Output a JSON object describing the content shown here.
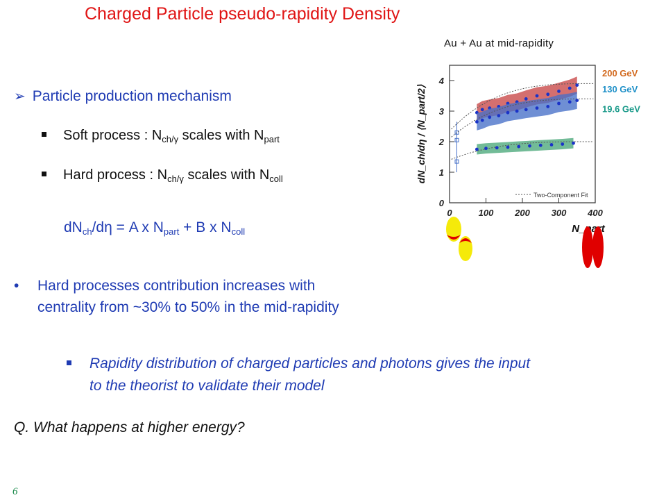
{
  "title": "Charged Particle pseudo-rapidity Density",
  "section_heading": "Particle production mechanism",
  "items": {
    "soft_pre": "Soft process : N",
    "soft_sub": "ch/γ",
    "soft_mid": " scales with N",
    "soft_sub2": "part",
    "hard_pre": "Hard process : N",
    "hard_sub": "ch/γ",
    "hard_mid": " scales with N",
    "hard_sub2": "coll"
  },
  "formula": {
    "p1": "dN",
    "s1": "ch",
    "p2": "/dη = A x N",
    "s2": "part",
    "p3": " + B x N",
    "s3": "coll"
  },
  "bullet_line1": "Hard processes contribution increases with",
  "bullet_line2": "centrality from ~30% to 50% in the mid-rapidity",
  "italic_line1": "Rapidity distribution of charged particles and photons gives the input",
  "italic_line2": "to the theorist to validate their model",
  "question": "Q. What happens at higher energy?",
  "page_number": "6",
  "colors": {
    "title": "#e01515",
    "text_blue": "#1f3bb3",
    "label_200": "#d2691e",
    "label_130": "#1e90c8",
    "label_196": "#1a9a8a"
  },
  "chart_data": {
    "type": "scatter",
    "title": "Au + Au at mid-rapidity",
    "xlabel": "N_part",
    "ylabel": "dN_ch/dη / ⟨N_part/2⟩",
    "xlim": [
      0,
      400
    ],
    "ylim": [
      0,
      4.5
    ],
    "xticks": [
      "0",
      "100",
      "200",
      "300",
      "400"
    ],
    "yticks": [
      "0",
      "1",
      "2",
      "3",
      "4"
    ],
    "legend": "Two-Component Fit",
    "series": [
      {
        "name": "200 GeV",
        "x": [
          20,
          75,
          90,
          110,
          135,
          160,
          185,
          210,
          240,
          270,
          300,
          330,
          350
        ],
        "y": [
          2.3,
          2.95,
          3.05,
          3.1,
          3.15,
          3.25,
          3.3,
          3.4,
          3.5,
          3.55,
          3.65,
          3.75,
          3.85
        ]
      },
      {
        "name": "130 GeV",
        "x": [
          20,
          75,
          90,
          110,
          135,
          160,
          185,
          210,
          240,
          270,
          300,
          330,
          350
        ],
        "y": [
          2.05,
          2.65,
          2.7,
          2.8,
          2.85,
          2.95,
          3.0,
          3.05,
          3.1,
          3.15,
          3.25,
          3.3,
          3.35
        ]
      },
      {
        "name": "19.6 GeV",
        "x": [
          20,
          75,
          100,
          130,
          160,
          190,
          220,
          250,
          280,
          310,
          340
        ],
        "y": [
          1.35,
          1.75,
          1.78,
          1.8,
          1.82,
          1.84,
          1.86,
          1.88,
          1.9,
          1.92,
          1.95
        ]
      }
    ]
  }
}
